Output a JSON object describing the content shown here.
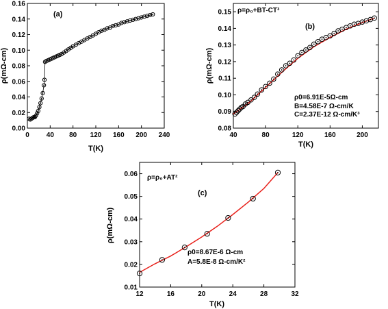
{
  "chart_data": [
    {
      "type": "line",
      "panel_label": "(a)",
      "xlabel": "T(K)",
      "ylabel": "ρ(mΩ-cm)",
      "xlim": [
        0,
        240
      ],
      "ylim": [
        0.0,
        0.16
      ],
      "xticks": [
        0,
        40,
        80,
        120,
        160,
        200,
        240
      ],
      "xtick_labels": [
        "0",
        "40",
        "80",
        "120",
        "160",
        "200",
        "240"
      ],
      "yticks": [
        0.0,
        0.02,
        0.04,
        0.06,
        0.08,
        0.1,
        0.12,
        0.14,
        0.16
      ],
      "ytick_labels": [
        "0.00",
        "0.02",
        "0.04",
        "0.06",
        "0.08",
        "0.10",
        "0.12",
        "0.14",
        "0.16"
      ],
      "grid": false,
      "series": [
        {
          "marker": "open-circle",
          "line": "solid",
          "x": [
            3,
            5,
            7,
            9,
            11,
            13,
            15,
            17,
            19,
            21,
            23,
            25,
            27,
            29,
            30,
            31,
            33,
            36,
            39,
            42,
            45,
            48,
            51,
            54,
            57,
            60,
            64,
            68,
            72,
            76,
            80,
            85,
            90,
            95,
            100,
            105,
            110,
            115,
            120,
            125,
            130,
            135,
            140,
            145,
            150,
            155,
            160,
            165,
            170,
            175,
            180,
            185,
            190,
            195,
            200,
            205,
            210,
            215,
            220
          ],
          "y": [
            0.012,
            0.011,
            0.012,
            0.013,
            0.014,
            0.014,
            0.016,
            0.019,
            0.022,
            0.027,
            0.032,
            0.038,
            0.045,
            0.055,
            0.062,
            0.085,
            0.086,
            0.087,
            0.088,
            0.089,
            0.09,
            0.091,
            0.092,
            0.093,
            0.094,
            0.095,
            0.097,
            0.099,
            0.101,
            0.103,
            0.105,
            0.107,
            0.109,
            0.111,
            0.113,
            0.115,
            0.117,
            0.119,
            0.121,
            0.123,
            0.125,
            0.126,
            0.128,
            0.129,
            0.131,
            0.132,
            0.133,
            0.135,
            0.136,
            0.137,
            0.138,
            0.139,
            0.14,
            0.141,
            0.142,
            0.143,
            0.144,
            0.145,
            0.146
          ]
        }
      ]
    },
    {
      "type": "scatter",
      "panel_label": "(b)",
      "equation": "ρ=ρ₀+BT-CT³",
      "xlabel": "T(K)",
      "ylabel": "ρ(mΩ-cm)",
      "xlim": [
        40,
        220
      ],
      "ylim": [
        0.08,
        0.155
      ],
      "xticks": [
        40,
        80,
        120,
        160,
        200
      ],
      "xtick_labels": [
        "40",
        "80",
        "120",
        "160",
        "200"
      ],
      "yticks": [
        0.08,
        0.09,
        0.1,
        0.11,
        0.12,
        0.13,
        0.14,
        0.15
      ],
      "ytick_labels": [
        "0.08",
        "0.09",
        "0.10",
        "0.11",
        "0.12",
        "0.13",
        "0.14",
        "0.15"
      ],
      "grid": false,
      "annotations": [
        "ρ0=6.91E-5Ω-cm",
        "B=4.58E-7 Ω-cm/K",
        "C=2.37E-12 Ω-cm/K³"
      ],
      "fit_color": "#e8211b",
      "series": [
        {
          "marker": "open-circle",
          "x": [
            42,
            44,
            46,
            48,
            50,
            52,
            55,
            58,
            62,
            66,
            70,
            75,
            80,
            85,
            90,
            95,
            100,
            105,
            110,
            115,
            120,
            125,
            130,
            135,
            140,
            145,
            150,
            155,
            160,
            165,
            170,
            175,
            180,
            185,
            190,
            195,
            200,
            205,
            210,
            215
          ],
          "y": [
            0.0885,
            0.0895,
            0.0905,
            0.0915,
            0.0925,
            0.093,
            0.0945,
            0.0955,
            0.097,
            0.0985,
            0.1005,
            0.103,
            0.105,
            0.107,
            0.1095,
            0.1125,
            0.115,
            0.1175,
            0.119,
            0.121,
            0.1235,
            0.1255,
            0.127,
            0.1285,
            0.1305,
            0.132,
            0.1335,
            0.1345,
            0.1355,
            0.137,
            0.1385,
            0.1395,
            0.1405,
            0.1415,
            0.1425,
            0.143,
            0.1438,
            0.1445,
            0.1453,
            0.1462
          ]
        }
      ],
      "fit_curve": {
        "x": [
          40,
          60,
          80,
          100,
          120,
          140,
          160,
          180,
          200,
          215
        ],
        "y": [
          0.0885,
          0.0955,
          0.1045,
          0.1135,
          0.122,
          0.129,
          0.1345,
          0.1395,
          0.1435,
          0.1462
        ]
      }
    },
    {
      "type": "scatter",
      "panel_label": "(c)",
      "equation": "ρ=ρ₀+AT²",
      "xlabel": "T(K)",
      "ylabel": "ρ(mΩ-cm)",
      "xlim": [
        12,
        32
      ],
      "ylim": [
        0.01,
        0.065
      ],
      "xticks": [
        12,
        16,
        20,
        24,
        28,
        32
      ],
      "xtick_labels": [
        "12",
        "16",
        "20",
        "24",
        "28",
        "32"
      ],
      "yticks": [
        0.01,
        0.02,
        0.03,
        0.04,
        0.05,
        0.06
      ],
      "ytick_labels": [
        "0.01",
        "0.02",
        "0.03",
        "0.04",
        "0.05",
        "0.06"
      ],
      "grid": false,
      "annotations": [
        "ρ0=8.67E-6 Ω-cm",
        "A=5.8E-8 Ω-cm/K²"
      ],
      "fit_color": "#e8211b",
      "series": [
        {
          "marker": "open-circle",
          "x": [
            12.0,
            14.9,
            17.8,
            20.7,
            23.4,
            26.6,
            29.8
          ],
          "y": [
            0.016,
            0.022,
            0.0275,
            0.0335,
            0.0405,
            0.049,
            0.0605
          ]
        }
      ],
      "fit_curve": {
        "x": [
          12,
          14,
          16,
          18,
          20,
          22,
          24,
          26,
          28,
          29.8
        ],
        "y": [
          0.0165,
          0.0203,
          0.0237,
          0.0278,
          0.0321,
          0.0368,
          0.042,
          0.0475,
          0.0535,
          0.0605
        ]
      }
    }
  ]
}
